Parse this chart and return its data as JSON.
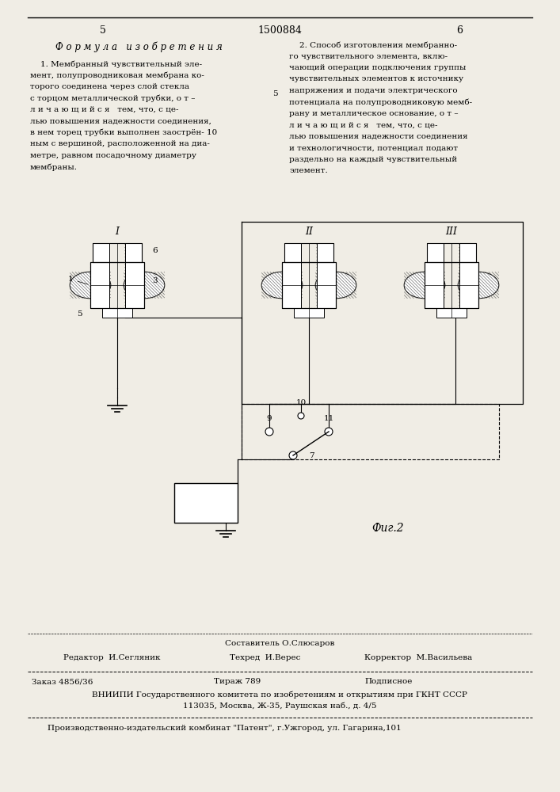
{
  "bg_color": "#f0ede5",
  "page_num_left": "5",
  "page_num_center": "1500884",
  "page_num_right": "6",
  "left_header": "Ф о р м у л а   и з о б р е т е н и я",
  "left_col_text": [
    "    1. Мембранный чувствительный эле-",
    "мент, полупроводниковая мембрана ко-",
    "торого соединена через слой стекла",
    "с торцом металлической трубки, о т –",
    "л и ч а ю щ и й с я   тем, что, с це-",
    "лью повышения надежности соединения,",
    "в нем торец трубки выполнен заострён- 10",
    "ным с вершиной, расположенной на диа-",
    "метре, равном посадочному диаметру",
    "мембраны."
  ],
  "right_col_text": [
    "    2. Способ изготовления мембранно-",
    "го чувствительного элемента, вклю-",
    "чающий операции подключения группы",
    "чувствительных элементов к источнику",
    "напряжения и подачи электрического",
    "потенциала на полупроводниковую мемб-",
    "рану и металлическое основание, о т –",
    "л и ч а ю щ и й с я   тем, что, с це-",
    "лью повышения надежности соединения",
    "и технологичности, потенциал подают",
    "раздельно на каждый чувствительный",
    "элемент."
  ],
  "fig2_caption": "Фиг.2",
  "footer_staff_line1": "Составитель О.Слюсаров",
  "footer_editor": "Редактор  И.Сегляник",
  "footer_techred": "Техред  И.Верес",
  "footer_corrector": "Корректор  М.Васильева",
  "footer_order": "Заказ 4856/36",
  "footer_tiraz": "Тираж 789",
  "footer_podp": "Подписное",
  "footer_vniip": "ВНИИПИ Государственного комитета по изобретениям и открытиям при ГКНТ СССР",
  "footer_address": "113035, Москва, Ж-35, Раушская наб., д. 4/5",
  "footer_factory": "Производственно-издательский комбинат \"Патент\", г.Ужгород, ул. Гагарина,101"
}
